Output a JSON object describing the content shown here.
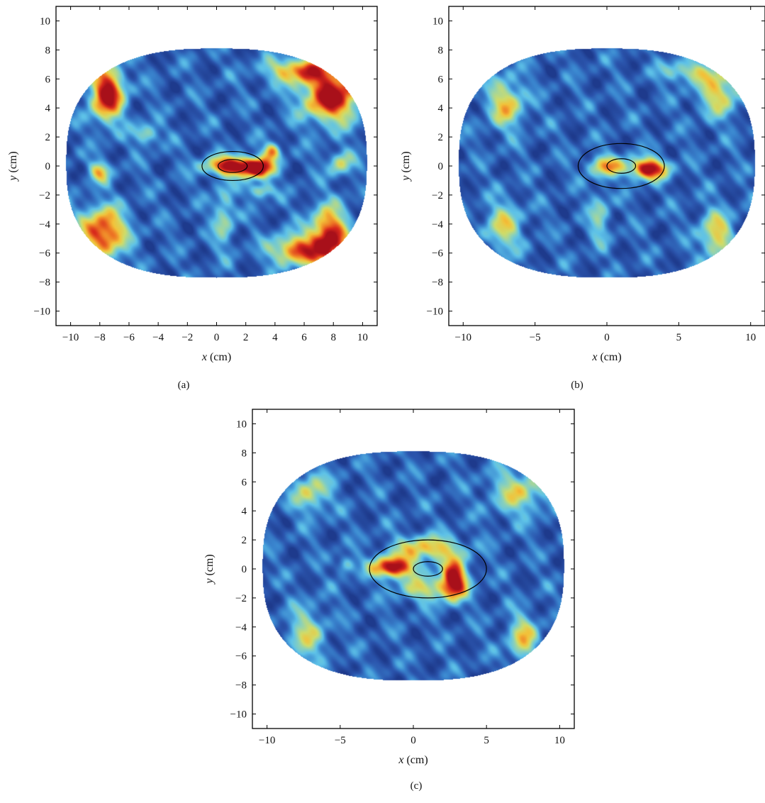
{
  "colors": {
    "outside": "#ffffff",
    "colormap": [
      "#1e3a8c",
      "#2b55ad",
      "#3a86cf",
      "#5ec2e8",
      "#8fd2b5",
      "#cfdc6a",
      "#f2c23a",
      "#ee7a25",
      "#d7281c",
      "#a8101a"
    ],
    "contour": "#000000",
    "frame": "#000000"
  },
  "chart_data": [
    {
      "type": "heatmap",
      "panel_label": "(a)",
      "xlabel_var": "x",
      "xlabel_unit": "(cm)",
      "ylabel_var": "y",
      "ylabel_unit": "(cm)",
      "xlim": [
        -11,
        11
      ],
      "ylim": [
        -11,
        11
      ],
      "xticks": [
        -10,
        -8,
        -6,
        -4,
        -2,
        0,
        2,
        4,
        6,
        8,
        10
      ],
      "xtick_labels": [
        "−10",
        "−8",
        "−6",
        "−4",
        "−2",
        "0",
        "2",
        "4",
        "6",
        "8",
        "10"
      ],
      "yticks": [
        10,
        8,
        6,
        4,
        2,
        0,
        -2,
        -4,
        -6,
        -8,
        -10
      ],
      "ytick_labels": [
        "10",
        "8",
        "6",
        "4",
        "2",
        "0",
        "−2",
        "−4",
        "−6",
        "−8",
        "−10"
      ],
      "domain_boundary": {
        "cx": 0,
        "cy": 0.2,
        "rx": 10.3,
        "ry": 7.9
      },
      "contours": [
        {
          "cx": 1.1,
          "cy": 0.0,
          "rx": 2.1,
          "ry": 1.0
        },
        {
          "cx": 1.1,
          "cy": 0.0,
          "rx": 1.0,
          "ry": 0.45
        }
      ],
      "hotspots": [
        {
          "x": 1.2,
          "y": 0.0,
          "sx": 1.3,
          "sy": 0.45,
          "a": 0.95
        },
        {
          "x": 2.9,
          "y": -0.2,
          "sx": 0.7,
          "sy": 0.5,
          "a": 0.7
        },
        {
          "x": -7.5,
          "y": 5.0,
          "sx": 0.8,
          "sy": 1.3,
          "a": 0.92
        },
        {
          "x": 7.9,
          "y": 4.8,
          "sx": 1.4,
          "sy": 1.2,
          "a": 0.92
        },
        {
          "x": 5.8,
          "y": 6.6,
          "sx": 1.6,
          "sy": 0.6,
          "a": 0.65
        },
        {
          "x": -7.8,
          "y": -4.6,
          "sx": 1.1,
          "sy": 1.2,
          "a": 0.82
        },
        {
          "x": 7.7,
          "y": -5.0,
          "sx": 0.9,
          "sy": 1.4,
          "a": 0.92
        },
        {
          "x": 5.4,
          "y": -5.8,
          "sx": 1.2,
          "sy": 0.7,
          "a": 0.7
        },
        {
          "x": 3.8,
          "y": 1.0,
          "sx": 0.4,
          "sy": 0.4,
          "a": 0.6
        },
        {
          "x": -8.0,
          "y": -0.4,
          "sx": 0.5,
          "sy": 0.5,
          "a": 0.5
        },
        {
          "x": 3.0,
          "y": -1.7,
          "sx": 0.6,
          "sy": 0.35,
          "a": 0.42
        },
        {
          "x": -4.8,
          "y": 2.2,
          "sx": 0.6,
          "sy": 0.5,
          "a": 0.38
        },
        {
          "x": 0.5,
          "y": -3.5,
          "sx": 0.5,
          "sy": 1.5,
          "a": 0.35
        },
        {
          "x": 8.5,
          "y": 0.2,
          "sx": 0.6,
          "sy": 0.6,
          "a": 0.4
        }
      ]
    },
    {
      "type": "heatmap",
      "panel_label": "(b)",
      "xlabel_var": "x",
      "xlabel_unit": "(cm)",
      "ylabel_var": "y",
      "ylabel_unit": "(cm)",
      "xlim": [
        -11,
        11
      ],
      "ylim": [
        -11,
        11
      ],
      "xticks": [
        -10,
        -5,
        0,
        5,
        10
      ],
      "xtick_labels": [
        "−10",
        "−5",
        "0",
        "5",
        "10"
      ],
      "yticks": [
        10,
        8,
        6,
        4,
        2,
        0,
        -2,
        -4,
        -6,
        -8,
        -10
      ],
      "ytick_labels": [
        "10",
        "8",
        "6",
        "4",
        "2",
        "0",
        "−2",
        "−4",
        "−6",
        "−8",
        "−10"
      ],
      "domain_boundary": {
        "cx": 0,
        "cy": 0.2,
        "rx": 10.3,
        "ry": 7.9
      },
      "contours": [
        {
          "cx": 1.0,
          "cy": 0.0,
          "rx": 3.0,
          "ry": 1.55
        },
        {
          "cx": 1.0,
          "cy": 0.0,
          "rx": 1.0,
          "ry": 0.5
        }
      ],
      "hotspots": [
        {
          "x": 2.9,
          "y": -0.2,
          "sx": 0.9,
          "sy": 0.5,
          "a": 0.95
        },
        {
          "x": 0.0,
          "y": 0.0,
          "sx": 0.9,
          "sy": 0.5,
          "a": 0.55
        },
        {
          "x": -7.0,
          "y": 4.3,
          "sx": 0.9,
          "sy": 1.2,
          "a": 0.5
        },
        {
          "x": 7.8,
          "y": 5.2,
          "sx": 1.0,
          "sy": 1.2,
          "a": 0.5
        },
        {
          "x": 5.5,
          "y": 6.5,
          "sx": 1.2,
          "sy": 0.5,
          "a": 0.38
        },
        {
          "x": 7.6,
          "y": -4.8,
          "sx": 0.8,
          "sy": 1.2,
          "a": 0.5
        },
        {
          "x": -7.2,
          "y": -4.2,
          "sx": 0.9,
          "sy": 1.2,
          "a": 0.42
        },
        {
          "x": -0.5,
          "y": -3.5,
          "sx": 0.5,
          "sy": 1.3,
          "a": 0.3
        }
      ]
    },
    {
      "type": "heatmap",
      "panel_label": "(c)",
      "xlabel_var": "x",
      "xlabel_unit": "(cm)",
      "ylabel_var": "y",
      "ylabel_unit": "(cm)",
      "xlim": [
        -11,
        11
      ],
      "ylim": [
        -11,
        11
      ],
      "xticks": [
        -10,
        -5,
        0,
        5,
        10
      ],
      "xtick_labels": [
        "−10",
        "−5",
        "0",
        "5",
        "10"
      ],
      "yticks": [
        10,
        8,
        6,
        4,
        2,
        0,
        -2,
        -4,
        -6,
        -8,
        -10
      ],
      "ytick_labels": [
        "10",
        "8",
        "6",
        "4",
        "2",
        "0",
        "−2",
        "−4",
        "−6",
        "−8",
        "−10"
      ],
      "domain_boundary": {
        "cx": 0,
        "cy": 0.2,
        "rx": 10.3,
        "ry": 7.9
      },
      "contours": [
        {
          "cx": 1.0,
          "cy": 0.0,
          "rx": 4.0,
          "ry": 2.0
        },
        {
          "cx": 1.0,
          "cy": 0.0,
          "rx": 1.0,
          "ry": 0.5
        }
      ],
      "hotspots": [
        {
          "x": -1.4,
          "y": 0.1,
          "sx": 1.0,
          "sy": 0.5,
          "a": 0.95
        },
        {
          "x": 2.8,
          "y": -0.7,
          "sx": 0.6,
          "sy": 0.9,
          "a": 0.95
        },
        {
          "x": 1.0,
          "y": 1.4,
          "sx": 1.6,
          "sy": 0.6,
          "a": 0.55
        },
        {
          "x": 1.0,
          "y": -1.4,
          "sx": 1.4,
          "sy": 0.6,
          "a": 0.42
        },
        {
          "x": -7.0,
          "y": 5.3,
          "sx": 0.9,
          "sy": 1.0,
          "a": 0.42
        },
        {
          "x": 7.2,
          "y": 5.3,
          "sx": 1.3,
          "sy": 1.1,
          "a": 0.42
        },
        {
          "x": 7.5,
          "y": -4.8,
          "sx": 0.7,
          "sy": 1.1,
          "a": 0.48
        },
        {
          "x": -7.3,
          "y": -4.5,
          "sx": 0.9,
          "sy": 1.3,
          "a": 0.38
        },
        {
          "x": -4.6,
          "y": 0.3,
          "sx": 0.4,
          "sy": 0.4,
          "a": 0.32
        }
      ]
    }
  ]
}
